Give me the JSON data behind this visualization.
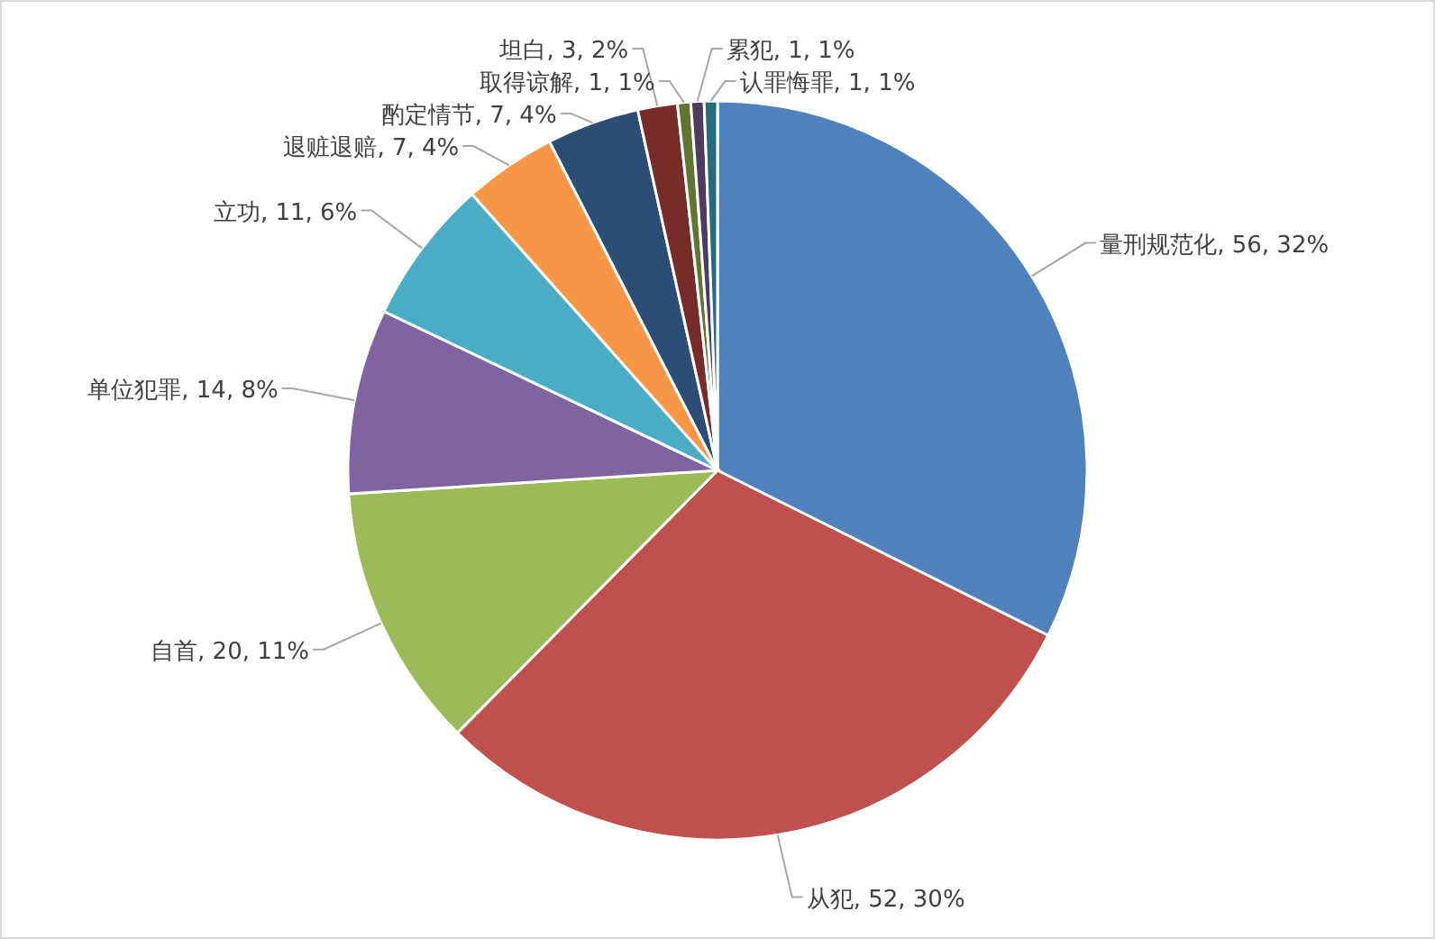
{
  "chart_data": {
    "type": "pie",
    "categories": [
      "量刑规范化",
      "从犯",
      "自首",
      "单位犯罪",
      "立功",
      "退赃退赔",
      "酌定情节",
      "坦白",
      "取得谅解",
      "累犯",
      "认罪悔罪"
    ],
    "values": [
      56,
      52,
      20,
      14,
      11,
      7,
      7,
      3,
      1,
      1,
      1
    ],
    "colors": [
      "#4f81bd",
      "#c0504d",
      "#9bbb59",
      "#8064a2",
      "#4bacc6",
      "#f79646",
      "#2c4d75",
      "#772c2a",
      "#5f7530",
      "#4d3b62",
      "#276a7c"
    ],
    "value_labels": [
      "56, 32%",
      "52, 30%",
      "20, 11%",
      "14, 8%",
      "11, 6%",
      "7, 4%",
      "7, 4%",
      "3, 2%",
      "1, 1%",
      "1, 1%",
      "1, 1%"
    ]
  }
}
